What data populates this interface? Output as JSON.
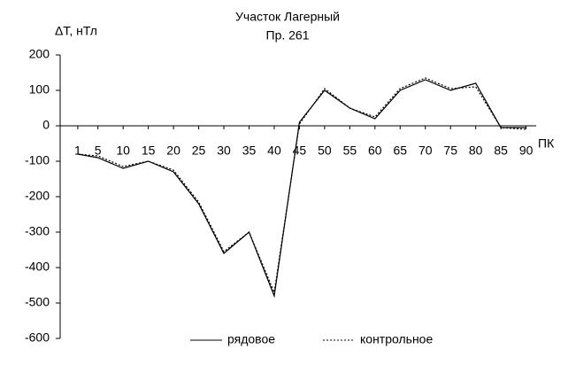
{
  "chart_data": {
    "type": "line",
    "title": "Участок Лагерный",
    "subtitle": "Пр. 261",
    "y_label": "ΔT, нТл",
    "x_label": "ПК",
    "x": [
      1,
      5,
      10,
      15,
      20,
      25,
      30,
      35,
      40,
      45,
      50,
      55,
      60,
      65,
      70,
      75,
      80,
      85,
      90
    ],
    "series": [
      {
        "name": "рядовое",
        "color": "#000000",
        "dash": "solid",
        "values": [
          -80,
          -90,
          -120,
          -100,
          -130,
          -220,
          -360,
          -300,
          -480,
          10,
          100,
          50,
          20,
          100,
          130,
          100,
          120,
          -5,
          -5
        ]
      },
      {
        "name": "контрольное",
        "color": "#000000",
        "dash": "dotted",
        "values": [
          -80,
          -85,
          -115,
          -100,
          -125,
          -215,
          -355,
          -300,
          -470,
          5,
          105,
          50,
          25,
          105,
          135,
          105,
          110,
          -5,
          -10
        ]
      }
    ],
    "xlim": [
      -2.5,
      92
    ],
    "xticks": [
      1,
      5,
      10,
      15,
      20,
      25,
      30,
      35,
      40,
      45,
      50,
      55,
      60,
      65,
      70,
      75,
      80,
      85,
      90
    ],
    "ylim": [
      -600,
      200
    ],
    "yticks": [
      -600,
      -500,
      -400,
      -300,
      -200,
      -100,
      0,
      100,
      200
    ],
    "grid": false,
    "legend": "bottom"
  }
}
